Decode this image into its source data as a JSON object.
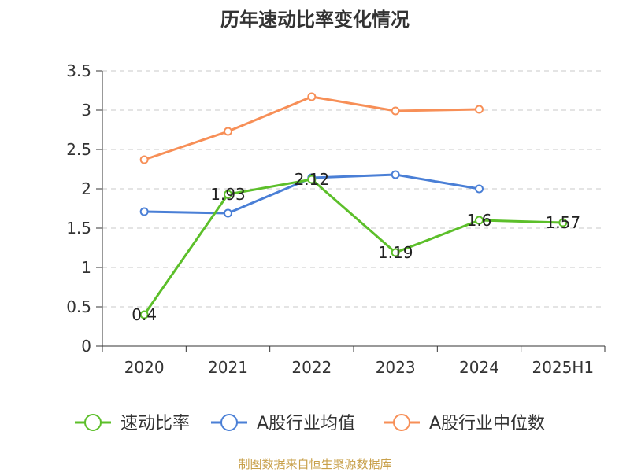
{
  "chart_data": {
    "type": "line",
    "title": "历年速动比率变化情况",
    "categories": [
      "2020",
      "2021",
      "2022",
      "2023",
      "2024",
      "2025H1"
    ],
    "ylim": [
      0,
      3.5
    ],
    "yticks": [
      "0",
      "0.5",
      "1",
      "1.5",
      "2",
      "2.5",
      "3",
      "3.5"
    ],
    "grid": true,
    "legend_position": "bottom",
    "series": [
      {
        "name": "速动比率",
        "color": "#5cbf2a",
        "values": [
          0.4,
          1.93,
          2.12,
          1.19,
          1.6,
          1.57
        ],
        "labels": [
          "0.4",
          "1.93",
          "2.12",
          "1.19",
          "1.6",
          "1.57"
        ]
      },
      {
        "name": "A股行业均值",
        "color": "#4a7fd6",
        "values": [
          1.71,
          1.69,
          2.14,
          2.18,
          2.0,
          null
        ]
      },
      {
        "name": "A股行业中位数",
        "color": "#f78f57",
        "values": [
          2.37,
          2.73,
          3.17,
          2.99,
          3.01,
          null
        ]
      }
    ],
    "source": "制图数据来自恒生聚源数据库"
  }
}
